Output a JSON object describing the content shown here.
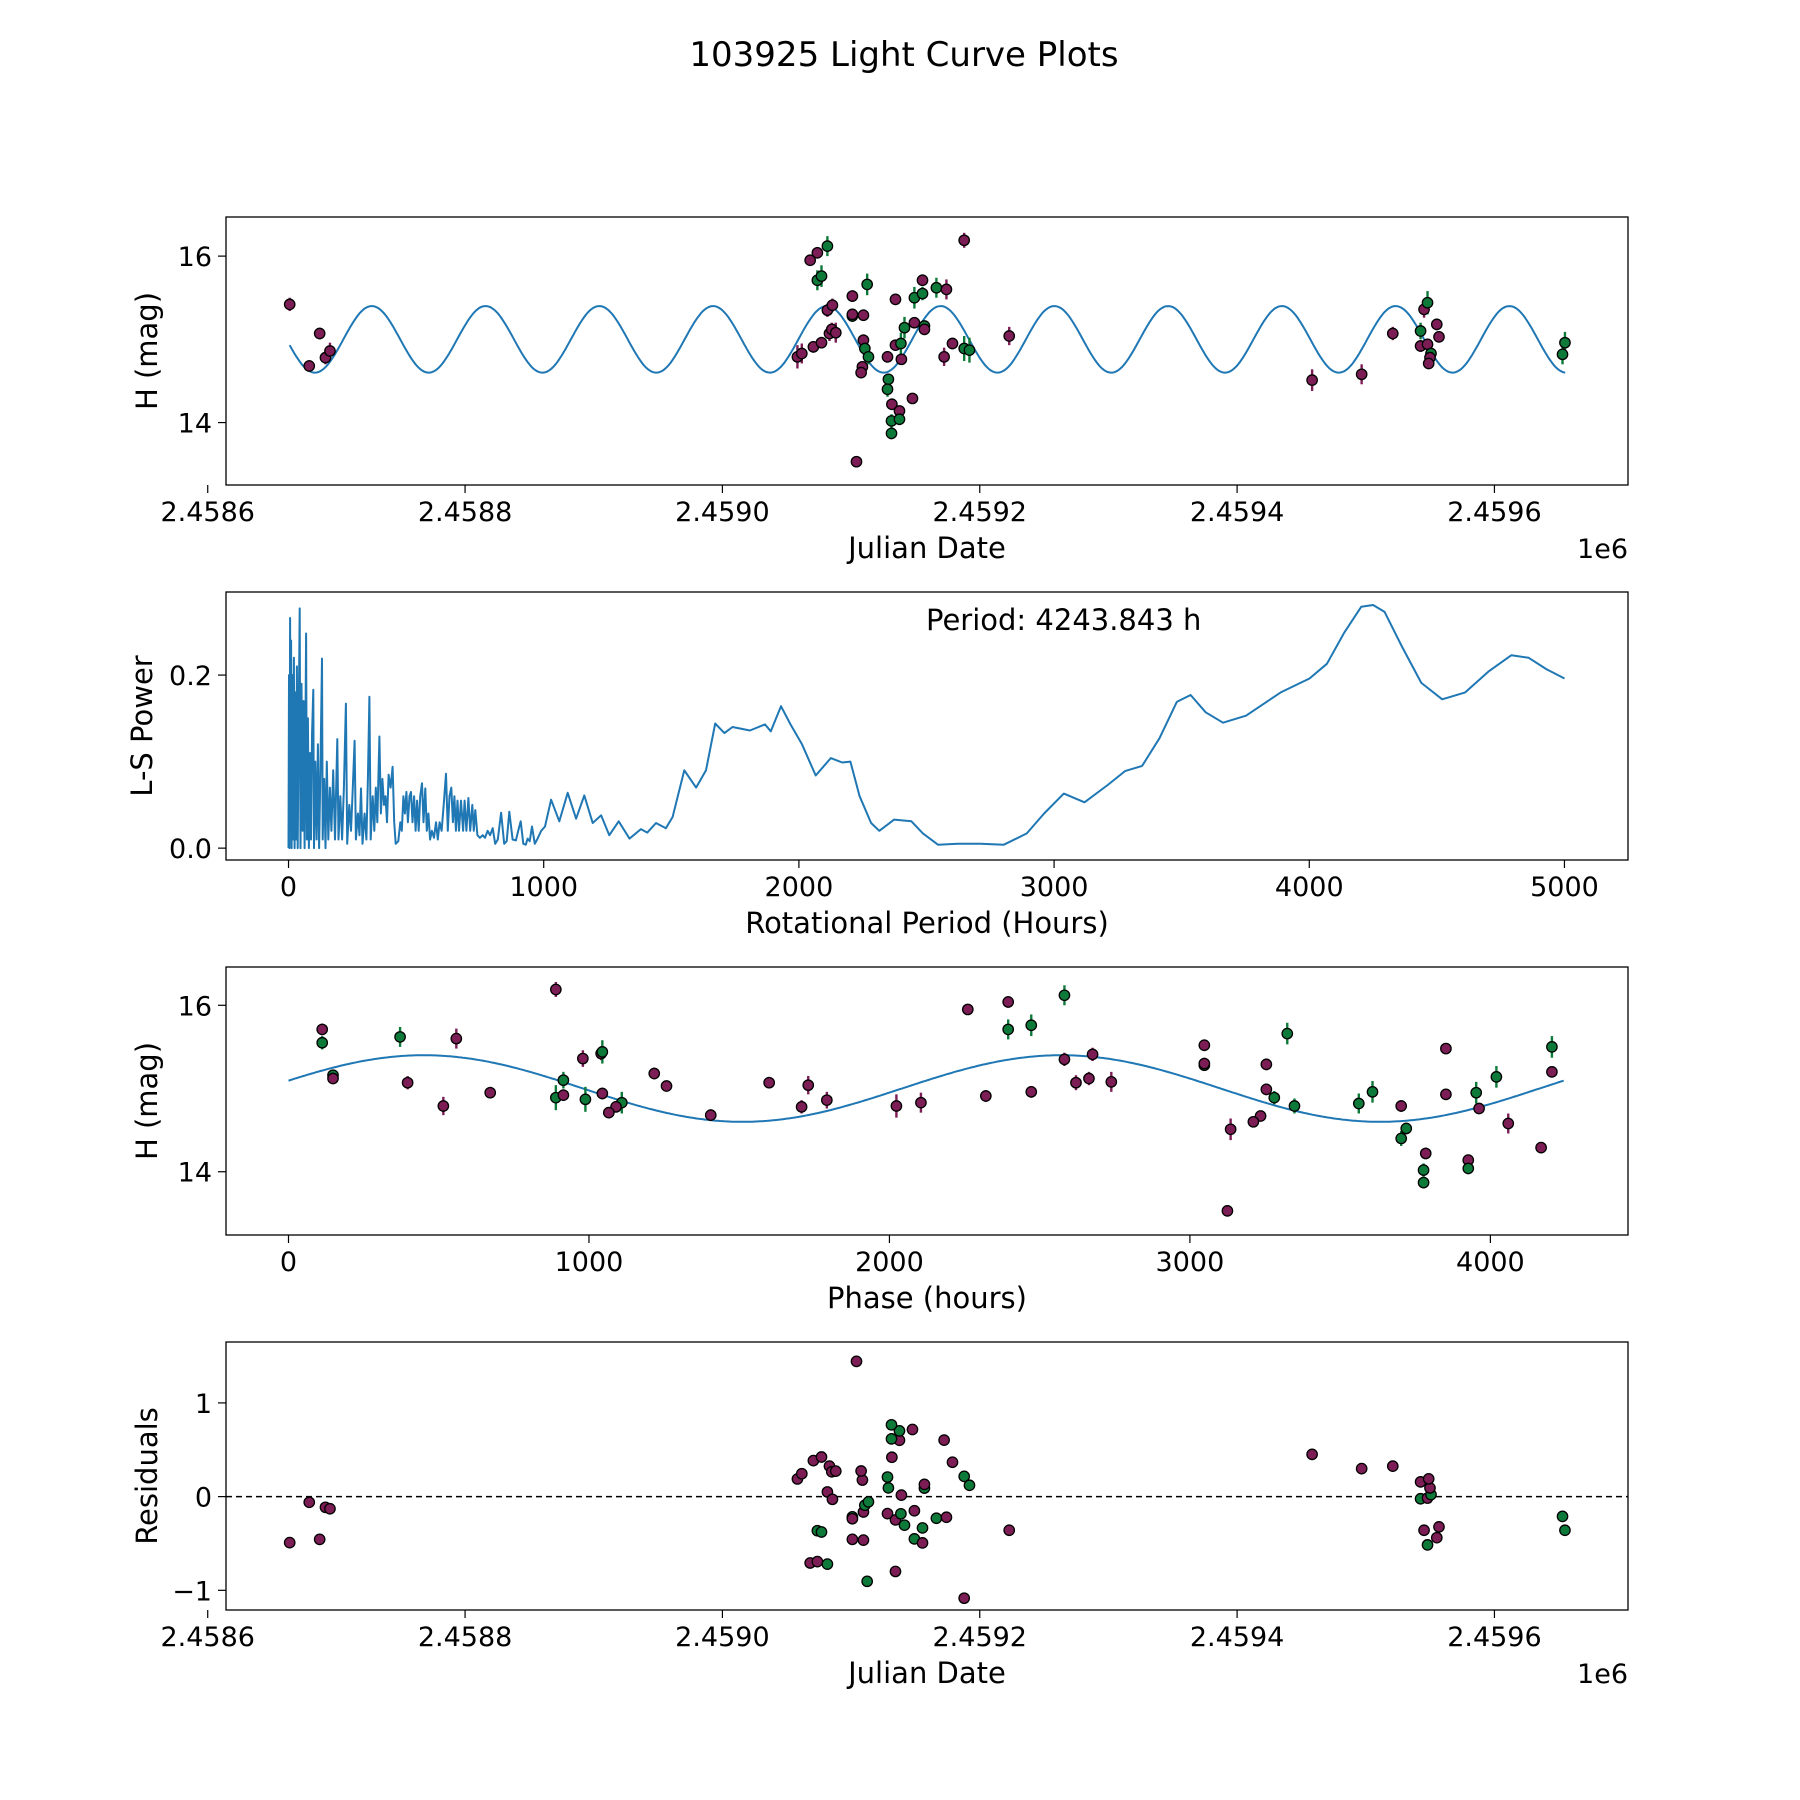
{
  "title": "103925 Light Curve Plots",
  "colors": {
    "series_a": "#7d1d56",
    "series_b": "#0e7a3a",
    "model": "#1f77b4"
  },
  "chart_data": [
    {
      "id": "lightcurve",
      "type": "scatter",
      "xlabel": "Julian Date",
      "ylabel": "H (mag)",
      "offset_label": "1e6",
      "xlim": [
        2458614.2,
        2459703.8
      ],
      "ylim": [
        13.25,
        16.47
      ],
      "xticks": [
        2458600,
        2458800,
        2459000,
        2459200,
        2459400,
        2459600
      ],
      "xtick_labels": [
        "2.4586",
        "2.4588",
        "2.4590",
        "2.4592",
        "2.4594",
        "2.4596"
      ],
      "yticks": [
        14,
        16
      ],
      "ytick_labels": [
        "14",
        "16"
      ],
      "model_range": [
        2458663.7,
        2459655.0
      ]
    },
    {
      "id": "periodogram",
      "type": "line",
      "xlabel": "Rotational Period (Hours)",
      "ylabel": "L-S Power",
      "annotation": "Period: 4243.843 h",
      "xlim": [
        -245,
        5249
      ],
      "ylim": [
        -0.0137,
        0.296
      ],
      "xticks": [
        0,
        1000,
        2000,
        3000,
        4000,
        5000
      ],
      "xtick_labels": [
        "0",
        "1000",
        "2000",
        "3000",
        "4000",
        "5000"
      ],
      "yticks": [
        0.0,
        0.2
      ],
      "ytick_labels": [
        "0.0",
        "0.2"
      ],
      "points": [
        [
          0,
          0
        ],
        [
          2,
          0.2
        ],
        [
          4,
          0
        ],
        [
          6,
          0.266
        ],
        [
          8,
          0.02
        ],
        [
          10,
          0.24
        ],
        [
          12,
          0
        ],
        [
          15,
          0.2
        ],
        [
          18,
          0.01
        ],
        [
          21,
          0.22
        ],
        [
          24,
          0
        ],
        [
          27,
          0.18
        ],
        [
          30,
          0.01
        ],
        [
          33,
          0.21
        ],
        [
          36,
          0
        ],
        [
          40,
          0.15
        ],
        [
          44,
          0.277
        ],
        [
          47,
          0
        ],
        [
          51,
          0.19
        ],
        [
          55,
          0.02
        ],
        [
          59,
          0.17
        ],
        [
          63,
          0
        ],
        [
          66,
          0.13
        ],
        [
          69,
          0.248
        ],
        [
          72,
          0.01
        ],
        [
          76,
          0.15
        ],
        [
          80,
          0
        ],
        [
          84,
          0.11
        ],
        [
          88,
          0.01
        ],
        [
          92,
          0.13
        ],
        [
          97,
          0.183
        ],
        [
          100,
          0
        ],
        [
          105,
          0.1
        ],
        [
          110,
          0.01
        ],
        [
          115,
          0.12
        ],
        [
          120,
          0
        ],
        [
          125,
          0.09
        ],
        [
          131,
          0.219
        ],
        [
          134,
          0.01
        ],
        [
          140,
          0.08
        ],
        [
          145,
          0
        ],
        [
          150,
          0.1
        ],
        [
          156,
          0.01
        ],
        [
          162,
          0.07
        ],
        [
          168,
          0.02
        ],
        [
          175,
          0.09
        ],
        [
          182,
          0.01
        ],
        [
          191,
          0.126
        ],
        [
          196,
          0.01
        ],
        [
          203,
          0.06
        ],
        [
          210,
          0.01
        ],
        [
          217,
          0.07
        ],
        [
          225,
          0.167
        ],
        [
          230,
          0.005
        ],
        [
          238,
          0.05
        ],
        [
          245,
          0.02
        ],
        [
          252,
          0.07
        ],
        [
          259,
          0.124
        ],
        [
          264,
          0.01
        ],
        [
          272,
          0.04
        ],
        [
          278,
          0.015
        ],
        [
          284,
          0.069
        ],
        [
          290,
          0.005
        ],
        [
          298,
          0.04
        ],
        [
          305,
          0.01
        ],
        [
          311,
          0.08
        ],
        [
          317,
          0.175
        ],
        [
          322,
          0.01
        ],
        [
          330,
          0.06
        ],
        [
          336,
          0.02
        ],
        [
          342,
          0.07
        ],
        [
          348,
          0.03
        ],
        [
          356,
          0.129
        ],
        [
          362,
          0.04
        ],
        [
          368,
          0.08
        ],
        [
          374,
          0.05
        ],
        [
          380,
          0.06
        ],
        [
          386,
          0.03
        ],
        [
          392,
          0.085
        ],
        [
          400,
          0.07
        ],
        [
          408,
          0.094
        ],
        [
          414,
          0.03
        ],
        [
          420,
          0.005
        ],
        [
          430,
          0.008
        ],
        [
          438,
          0.03
        ],
        [
          444,
          0.02
        ],
        [
          450,
          0.06
        ],
        [
          456,
          0.04
        ],
        [
          462,
          0.065
        ],
        [
          468,
          0.03
        ],
        [
          474,
          0.06
        ],
        [
          480,
          0.065
        ],
        [
          486,
          0.03
        ],
        [
          492,
          0.06
        ],
        [
          498,
          0.02
        ],
        [
          504,
          0.055
        ],
        [
          510,
          0.02
        ],
        [
          516,
          0.06
        ],
        [
          523,
          0.075
        ],
        [
          529,
          0.03
        ],
        [
          536,
          0.069
        ],
        [
          542,
          0.02
        ],
        [
          548,
          0.04
        ],
        [
          555,
          0.01
        ],
        [
          562,
          0.02
        ],
        [
          570,
          0.012
        ],
        [
          578,
          0.03
        ],
        [
          585,
          0.01
        ],
        [
          592,
          0.03
        ],
        [
          600,
          0.02
        ],
        [
          608,
          0.05
        ],
        [
          617,
          0.086
        ],
        [
          624,
          0.02
        ],
        [
          631,
          0.06
        ],
        [
          638,
          0.07
        ],
        [
          644,
          0.03
        ],
        [
          650,
          0.06
        ],
        [
          656,
          0.02
        ],
        [
          662,
          0.055
        ],
        [
          668,
          0.02
        ],
        [
          676,
          0.055
        ],
        [
          684,
          0.02
        ],
        [
          690,
          0.055
        ],
        [
          697,
          0.02
        ],
        [
          705,
          0.058
        ],
        [
          712,
          0.02
        ],
        [
          720,
          0.05
        ],
        [
          726,
          0.02
        ],
        [
          732,
          0.044
        ],
        [
          740,
          0.015
        ],
        [
          750,
          0.012
        ],
        [
          761,
          0.015
        ],
        [
          770,
          0.012
        ],
        [
          780,
          0.02
        ],
        [
          790,
          0.015
        ],
        [
          800,
          0.023
        ],
        [
          810,
          0.005
        ],
        [
          820,
          0.01
        ],
        [
          833,
          0.041
        ],
        [
          845,
          0.005
        ],
        [
          855,
          0.008
        ],
        [
          865,
          0.042
        ],
        [
          878,
          0.01
        ],
        [
          891,
          0.009
        ],
        [
          900,
          0.02
        ],
        [
          910,
          0.031
        ],
        [
          920,
          0.005
        ],
        [
          930,
          0.004
        ],
        [
          937,
          0.011
        ],
        [
          945,
          0.008
        ],
        [
          954,
          0.025
        ],
        [
          965,
          0.005
        ],
        [
          976,
          0.011
        ],
        [
          990,
          0.02
        ],
        [
          1005,
          0.025
        ],
        [
          1029,
          0.056
        ],
        [
          1061,
          0.031
        ],
        [
          1094,
          0.064
        ],
        [
          1127,
          0.034
        ],
        [
          1159,
          0.061
        ],
        [
          1192,
          0.029
        ],
        [
          1225,
          0.038
        ],
        [
          1257,
          0.015
        ],
        [
          1294,
          0.031
        ],
        [
          1336,
          0.011
        ],
        [
          1381,
          0.022
        ],
        [
          1406,
          0.018
        ],
        [
          1440,
          0.029
        ],
        [
          1479,
          0.023
        ],
        [
          1505,
          0.036
        ],
        [
          1551,
          0.09
        ],
        [
          1597,
          0.07
        ],
        [
          1636,
          0.09
        ],
        [
          1672,
          0.144
        ],
        [
          1708,
          0.133
        ],
        [
          1740,
          0.14
        ],
        [
          1808,
          0.136
        ],
        [
          1867,
          0.143
        ],
        [
          1890,
          0.135
        ],
        [
          1930,
          0.164
        ],
        [
          1967,
          0.143
        ],
        [
          2012,
          0.12
        ],
        [
          2066,
          0.084
        ],
        [
          2125,
          0.104
        ],
        [
          2170,
          0.099
        ],
        [
          2202,
          0.1
        ],
        [
          2238,
          0.06
        ],
        [
          2283,
          0.029
        ],
        [
          2315,
          0.02
        ],
        [
          2373,
          0.033
        ],
        [
          2441,
          0.031
        ],
        [
          2486,
          0.017
        ],
        [
          2545,
          0.004
        ],
        [
          2622,
          0.005
        ],
        [
          2712,
          0.005
        ],
        [
          2803,
          0.004
        ],
        [
          2893,
          0.017
        ],
        [
          2961,
          0.04
        ],
        [
          3038,
          0.063
        ],
        [
          3119,
          0.053
        ],
        [
          3210,
          0.073
        ],
        [
          3278,
          0.089
        ],
        [
          3345,
          0.095
        ],
        [
          3413,
          0.127
        ],
        [
          3481,
          0.169
        ],
        [
          3535,
          0.177
        ],
        [
          3594,
          0.157
        ],
        [
          3662,
          0.145
        ],
        [
          3752,
          0.153
        ],
        [
          3888,
          0.18
        ],
        [
          4001,
          0.196
        ],
        [
          4069,
          0.213
        ],
        [
          4137,
          0.249
        ],
        [
          4204,
          0.279
        ],
        [
          4250,
          0.281
        ],
        [
          4295,
          0.273
        ],
        [
          4363,
          0.233
        ],
        [
          4439,
          0.191
        ],
        [
          4521,
          0.172
        ],
        [
          4611,
          0.18
        ],
        [
          4702,
          0.204
        ],
        [
          4792,
          0.223
        ],
        [
          4860,
          0.22
        ],
        [
          4928,
          0.207
        ],
        [
          5000,
          0.196
        ]
      ]
    },
    {
      "id": "phased",
      "type": "scatter",
      "xlabel": "Phase (hours)",
      "ylabel": "H (mag)",
      "xlim": [
        -208,
        4458
      ],
      "ylim": [
        13.24,
        16.46
      ],
      "xticks": [
        0,
        1000,
        2000,
        3000,
        4000
      ],
      "xtick_labels": [
        "0",
        "1000",
        "2000",
        "3000",
        "4000"
      ],
      "yticks": [
        14,
        16
      ],
      "ytick_labels": [
        "14",
        "16"
      ],
      "period_hours": 4243.843,
      "epoch_jd": 2458974.0
    },
    {
      "id": "residuals",
      "type": "scatter",
      "xlabel": "Julian Date",
      "ylabel": "Residuals",
      "offset_label": "1e6",
      "xlim": [
        2458614.2,
        2459703.8
      ],
      "ylim": [
        -1.21,
        1.65
      ],
      "xticks": [
        2458600,
        2458800,
        2459000,
        2459200,
        2459400,
        2459600
      ],
      "xtick_labels": [
        "2.4586",
        "2.4588",
        "2.4590",
        "2.4592",
        "2.4594",
        "2.4596"
      ],
      "yticks": [
        -1,
        0,
        1
      ],
      "ytick_labels": [
        "−1",
        "0",
        "1"
      ],
      "reference_line": 0
    }
  ],
  "model": {
    "mean": 15.0,
    "amplitude": 0.4,
    "period_hours": 2121.92,
    "peak_phase_hours": 450,
    "epoch_jd": 2458974.0
  },
  "observations": [
    [
      2458663.7,
      15.42,
      0.08,
      "a"
    ],
    [
      2458678.9,
      14.68,
      0.07,
      "a"
    ],
    [
      2458687.0,
      15.07,
      0.07,
      "a"
    ],
    [
      2458691.5,
      14.78,
      0.08,
      "a"
    ],
    [
      2458695.0,
      14.86,
      0.1,
      "a"
    ],
    [
      2459058.3,
      14.79,
      0.14,
      "a"
    ],
    [
      2459061.7,
      14.83,
      0.12,
      "a"
    ],
    [
      2459068.2,
      15.95,
      0.06,
      "a"
    ],
    [
      2459073.8,
      16.04,
      0.07,
      "a"
    ],
    [
      2459081.6,
      16.12,
      0.12,
      "b"
    ],
    [
      2459073.8,
      15.71,
      0.12,
      "b"
    ],
    [
      2459077.0,
      15.76,
      0.13,
      "b"
    ],
    [
      2459070.7,
      14.91,
      0.07,
      "a"
    ],
    [
      2459077.0,
      14.96,
      0.07,
      "a"
    ],
    [
      2459081.6,
      15.35,
      0.08,
      "a"
    ],
    [
      2459085.5,
      15.41,
      0.08,
      "a"
    ],
    [
      2459083.2,
      15.07,
      0.09,
      "a"
    ],
    [
      2459085.0,
      15.12,
      0.08,
      "a"
    ],
    [
      2459088.1,
      15.08,
      0.12,
      "a"
    ],
    [
      2459101.0,
      15.52,
      0.07,
      "a"
    ],
    [
      2459101.0,
      15.28,
      0.07,
      "b"
    ],
    [
      2459101.0,
      15.3,
      0.07,
      "a"
    ],
    [
      2459109.6,
      15.29,
      0.07,
      "a"
    ],
    [
      2459112.5,
      15.66,
      0.13,
      "b"
    ],
    [
      2459109.6,
      14.99,
      0.07,
      "a"
    ],
    [
      2459110.7,
      14.89,
      0.08,
      "b"
    ],
    [
      2459113.5,
      14.79,
      0.09,
      "b"
    ],
    [
      2459108.8,
      14.67,
      0.05,
      "a"
    ],
    [
      2459107.8,
      14.6,
      0.06,
      "a"
    ],
    [
      2459104.2,
      13.53,
      0.06,
      "a"
    ],
    [
      2459128.3,
      14.79,
      0.07,
      "a"
    ],
    [
      2459129.0,
      14.52,
      0.07,
      "b"
    ],
    [
      2459128.3,
      14.4,
      0.09,
      "b"
    ],
    [
      2459131.7,
      14.22,
      0.07,
      "a"
    ],
    [
      2459137.6,
      14.14,
      0.05,
      "a"
    ],
    [
      2459131.4,
      14.02,
      0.08,
      "b"
    ],
    [
      2459137.6,
      14.04,
      0.07,
      "b"
    ],
    [
      2459131.4,
      13.87,
      0.07,
      "b"
    ],
    [
      2459134.5,
      15.48,
      0.05,
      "a"
    ],
    [
      2459134.5,
      14.93,
      0.06,
      "a"
    ],
    [
      2459138.7,
      14.95,
      0.13,
      "b"
    ],
    [
      2459139.1,
      14.76,
      0.05,
      "a"
    ],
    [
      2459141.5,
      15.14,
      0.13,
      "b"
    ],
    [
      2459147.7,
      14.29,
      0.05,
      "a"
    ],
    [
      2459149.2,
      15.5,
      0.13,
      "b"
    ],
    [
      2459155.5,
      15.71,
      0.07,
      "a"
    ],
    [
      2459155.5,
      15.55,
      0.08,
      "b"
    ],
    [
      2459149.2,
      15.2,
      0.06,
      "a"
    ],
    [
      2459157.0,
      15.16,
      0.06,
      "b"
    ],
    [
      2459157.0,
      15.12,
      0.06,
      "a"
    ],
    [
      2459166.3,
      15.62,
      0.12,
      "b"
    ],
    [
      2459174.1,
      15.6,
      0.12,
      "a"
    ],
    [
      2459172.3,
      14.79,
      0.11,
      "a"
    ],
    [
      2459178.8,
      14.95,
      0.07,
      "a"
    ],
    [
      2459187.9,
      14.89,
      0.15,
      "b"
    ],
    [
      2459192.0,
      14.87,
      0.15,
      "b"
    ],
    [
      2459187.9,
      16.19,
      0.09,
      "a"
    ],
    [
      2459222.9,
      15.04,
      0.11,
      "a"
    ],
    [
      2459458.3,
      14.51,
      0.13,
      "a"
    ],
    [
      2459496.8,
      14.58,
      0.12,
      "a"
    ],
    [
      2459521.0,
      15.07,
      0.08,
      "a"
    ],
    [
      2459542.6,
      15.1,
      0.1,
      "b"
    ],
    [
      2459545.3,
      15.36,
      0.1,
      "a"
    ],
    [
      2459548.0,
      15.44,
      0.14,
      "b"
    ],
    [
      2459542.6,
      14.92,
      0.07,
      "a"
    ],
    [
      2459548.0,
      14.94,
      0.07,
      "a"
    ],
    [
      2459550.7,
      14.83,
      0.13,
      "b"
    ],
    [
      2459549.9,
      14.78,
      0.07,
      "a"
    ],
    [
      2459548.9,
      14.71,
      0.06,
      "a"
    ],
    [
      2459555.2,
      15.18,
      0.07,
      "a"
    ],
    [
      2459556.9,
      15.03,
      0.06,
      "a"
    ],
    [
      2459652.9,
      14.82,
      0.12,
      "b"
    ],
    [
      2459654.8,
      14.96,
      0.13,
      "b"
    ]
  ]
}
